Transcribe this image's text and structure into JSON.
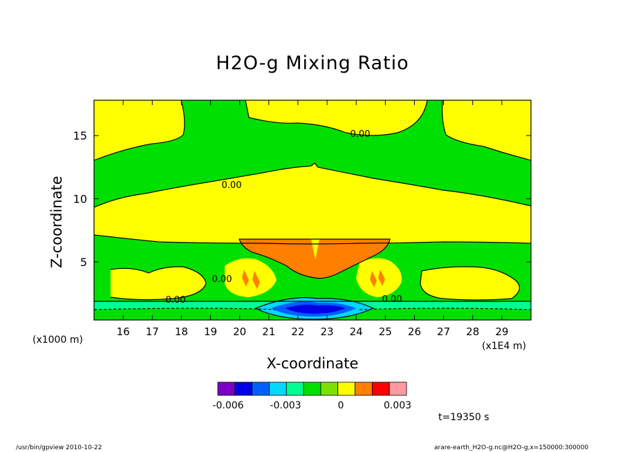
{
  "chart_data": {
    "type": "heatmap",
    "title": "H2O-g Mixing Ratio",
    "xlabel": "X-coordinate",
    "ylabel": "Z-coordinate",
    "x_unit_left": "(x1000 m)",
    "x_unit_right": "(x1E4 m)",
    "x_ticks": [
      "16",
      "17",
      "18",
      "19",
      "20",
      "21",
      "22",
      "23",
      "24",
      "25",
      "26",
      "27",
      "28",
      "29"
    ],
    "xlim": [
      15.0,
      30.0
    ],
    "y_ticks": [
      "5",
      "10",
      "15"
    ],
    "ylim": [
      0.4,
      17.8
    ],
    "contour_labels": [
      "0.00",
      "0.00",
      "0.00",
      "0.00",
      "0.00"
    ],
    "colorbar": {
      "colors": [
        "#7a00c8",
        "#0000e6",
        "#0060ff",
        "#00d8ff",
        "#00ff90",
        "#00e000",
        "#7de000",
        "#ffff00",
        "#ff8000",
        "#ff0000",
        "#ff9aa0"
      ],
      "tick_labels": [
        "-0.006",
        "-0.003",
        "0",
        "0.003"
      ]
    },
    "time_label": "t=19350 s"
  },
  "footer": {
    "left": "/usr/bin/gpview  2010-10-22",
    "right": "arare-earth_H2O-g.nc@H2O-g,x=150000:300000"
  }
}
